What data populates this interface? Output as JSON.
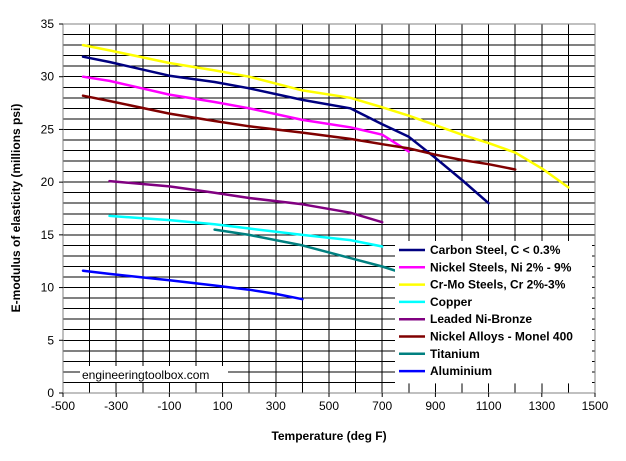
{
  "chart_data": {
    "type": "line",
    "title": "",
    "xlabel": "Temperature (deg F)",
    "ylabel": "E-modulus of elasticity (millions psi)",
    "xlim": [
      -500,
      1500
    ],
    "ylim": [
      0,
      35
    ],
    "x_ticks": [
      -500,
      -300,
      -100,
      100,
      300,
      500,
      700,
      900,
      1100,
      1300,
      1500
    ],
    "y_ticks": [
      0,
      5,
      10,
      15,
      20,
      25,
      30,
      35
    ],
    "x_tick_labels": [
      "-500",
      "-300",
      "-100",
      "100",
      "300",
      "500",
      "700",
      "900",
      "1100",
      "1300",
      "1500"
    ],
    "y_tick_labels": [
      "0",
      "5",
      "10",
      "15",
      "20",
      "25",
      "30",
      "35"
    ],
    "grid": {
      "horizontal_every": 1,
      "vertical_every": 100
    },
    "legend_position": "lower-right",
    "watermark": "engineeringtoolbox.com",
    "series": [
      {
        "name": "Carbon Steel, C < 0.3%",
        "color": "#000080",
        "points": [
          [
            -425,
            31.9
          ],
          [
            -325,
            31.4
          ],
          [
            -100,
            30.1
          ],
          [
            70,
            29.5
          ],
          [
            200,
            28.9
          ],
          [
            400,
            27.8
          ],
          [
            580,
            27.0
          ],
          [
            700,
            25.5
          ],
          [
            800,
            24.3
          ],
          [
            900,
            22.3
          ],
          [
            1000,
            20.2
          ],
          [
            1100,
            18.0
          ]
        ]
      },
      {
        "name": "Nickel Steels, Ni 2% - 9%",
        "color": "#ff00ff",
        "points": [
          [
            -425,
            30.0
          ],
          [
            -325,
            29.6
          ],
          [
            -100,
            28.3
          ],
          [
            70,
            27.6
          ],
          [
            200,
            27.0
          ],
          [
            400,
            25.9
          ],
          [
            580,
            25.2
          ],
          [
            700,
            24.5
          ],
          [
            800,
            22.9
          ]
        ]
      },
      {
        "name": "Cr-Mo Steels, Cr 2%-3%",
        "color": "#ffff00",
        "points": [
          [
            -425,
            33.0
          ],
          [
            -325,
            32.5
          ],
          [
            -100,
            31.3
          ],
          [
            70,
            30.6
          ],
          [
            200,
            30.0
          ],
          [
            400,
            28.7
          ],
          [
            580,
            28.0
          ],
          [
            700,
            27.1
          ],
          [
            800,
            26.3
          ],
          [
            900,
            25.4
          ],
          [
            1000,
            24.5
          ],
          [
            1100,
            23.7
          ],
          [
            1200,
            22.8
          ],
          [
            1300,
            21.3
          ],
          [
            1400,
            19.5
          ]
        ]
      },
      {
        "name": "Copper",
        "color": "#00ffff",
        "points": [
          [
            -325,
            16.8
          ],
          [
            -100,
            16.4
          ],
          [
            70,
            16.0
          ],
          [
            200,
            15.6
          ],
          [
            400,
            15.0
          ],
          [
            580,
            14.5
          ],
          [
            700,
            13.9
          ]
        ]
      },
      {
        "name": "Leaded Ni-Bronze",
        "color": "#800080",
        "points": [
          [
            -325,
            20.1
          ],
          [
            -100,
            19.6
          ],
          [
            70,
            19.0
          ],
          [
            200,
            18.5
          ],
          [
            400,
            17.9
          ],
          [
            580,
            17.1
          ],
          [
            700,
            16.2
          ]
        ]
      },
      {
        "name": "Nickel Alloys - Monel 400",
        "color": "#800000",
        "points": [
          [
            -425,
            28.2
          ],
          [
            -325,
            27.7
          ],
          [
            -100,
            26.5
          ],
          [
            70,
            25.8
          ],
          [
            200,
            25.3
          ],
          [
            400,
            24.7
          ],
          [
            580,
            24.1
          ],
          [
            700,
            23.6
          ],
          [
            800,
            23.2
          ],
          [
            900,
            22.6
          ],
          [
            1000,
            22.1
          ],
          [
            1100,
            21.7
          ],
          [
            1200,
            21.2
          ]
        ]
      },
      {
        "name": "Titanium",
        "color": "#008080",
        "points": [
          [
            70,
            15.5
          ],
          [
            200,
            15.0
          ],
          [
            400,
            14.0
          ],
          [
            580,
            12.8
          ],
          [
            700,
            12.0
          ],
          [
            800,
            11.2
          ]
        ]
      },
      {
        "name": "Aluminium",
        "color": "#0000ff",
        "points": [
          [
            -425,
            11.6
          ],
          [
            -325,
            11.3
          ],
          [
            -100,
            10.7
          ],
          [
            70,
            10.2
          ],
          [
            200,
            9.8
          ],
          [
            300,
            9.4
          ],
          [
            400,
            8.9
          ]
        ]
      }
    ]
  }
}
